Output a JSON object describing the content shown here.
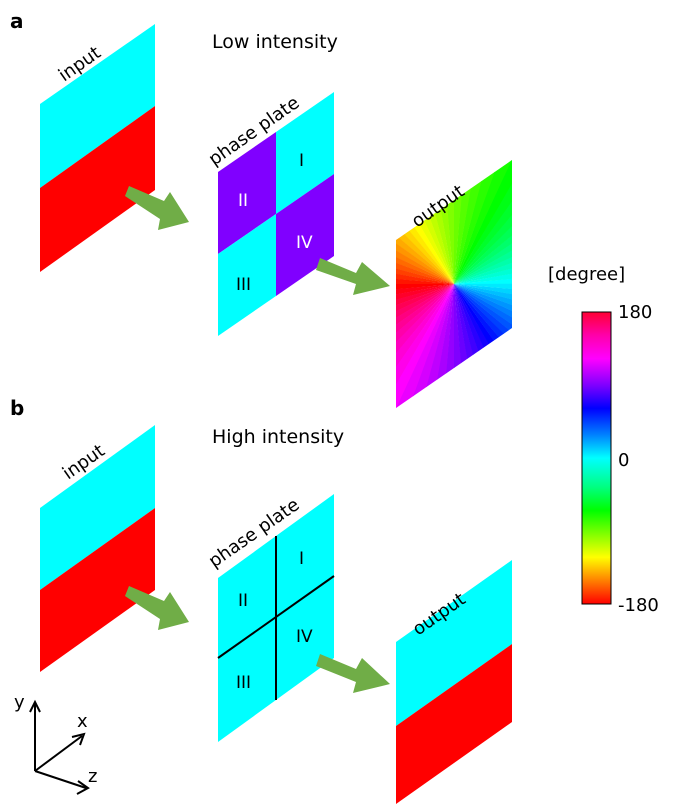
{
  "panel_a": {
    "letter": "a",
    "title": "Low intensity",
    "input_label": "input",
    "plate_label": "phase plate",
    "output_label": "output",
    "quadrants": [
      "I",
      "II",
      "III",
      "IV"
    ]
  },
  "panel_b": {
    "letter": "b",
    "title": "High intensity",
    "input_label": "input",
    "plate_label": "phase plate",
    "output_label": "output",
    "quadrants": [
      "I",
      "II",
      "III",
      "IV"
    ]
  },
  "colorbar": {
    "unit": "[degree]",
    "max_label": "180",
    "mid_label": "0",
    "min_label": "-180"
  },
  "axes": {
    "y": "y",
    "x": "x",
    "z": "z"
  },
  "colors": {
    "cyan": "#00ffff",
    "red": "#ff0000",
    "violet": "#8000ff",
    "arrow": "#70ad47"
  }
}
